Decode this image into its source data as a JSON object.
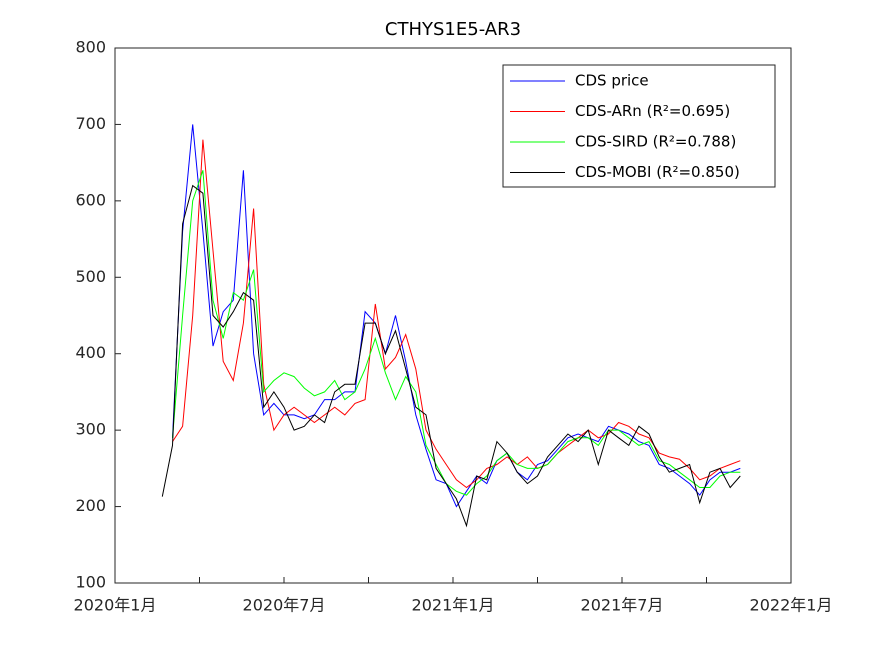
{
  "chart_data": {
    "type": "line",
    "title": "CTHYS1E5-AR3",
    "x": [
      2020.14,
      2020.17,
      2020.2,
      2020.23,
      2020.26,
      2020.29,
      2020.32,
      2020.35,
      2020.38,
      2020.41,
      2020.44,
      2020.47,
      2020.5,
      2020.53,
      2020.56,
      2020.59,
      2020.62,
      2020.65,
      2020.68,
      2020.71,
      2020.74,
      2020.77,
      2020.8,
      2020.83,
      2020.86,
      2020.89,
      2020.92,
      2020.95,
      2020.98,
      2021.01,
      2021.04,
      2021.07,
      2021.1,
      2021.13,
      2021.16,
      2021.19,
      2021.22,
      2021.25,
      2021.28,
      2021.31,
      2021.34,
      2021.37,
      2021.4,
      2021.43,
      2021.46,
      2021.49,
      2021.52,
      2021.55,
      2021.58,
      2021.61,
      2021.64,
      2021.67,
      2021.7,
      2021.73,
      2021.76,
      2021.79,
      2021.82,
      2021.85
    ],
    "series": [
      {
        "name": "CDS price",
        "color": "#0000ff",
        "values": [
          null,
          290,
          560,
          700,
          560,
          410,
          455,
          470,
          640,
          400,
          320,
          335,
          320,
          320,
          315,
          320,
          340,
          340,
          350,
          350,
          455,
          440,
          400,
          450,
          390,
          320,
          275,
          235,
          230,
          200,
          220,
          240,
          230,
          260,
          270,
          245,
          235,
          255,
          260,
          275,
          290,
          295,
          290,
          285,
          305,
          300,
          295,
          285,
          280,
          255,
          250,
          240,
          230,
          215,
          235,
          245,
          245,
          250
        ]
      },
      {
        "name": "CDS-ARn   (R²=0.695)",
        "color": "#ff0000",
        "values": [
          null,
          285,
          305,
          450,
          680,
          535,
          390,
          365,
          440,
          590,
          360,
          300,
          320,
          330,
          320,
          310,
          320,
          330,
          320,
          335,
          340,
          465,
          380,
          395,
          425,
          380,
          300,
          275,
          255,
          235,
          225,
          235,
          250,
          255,
          265,
          255,
          265,
          250,
          255,
          270,
          280,
          290,
          300,
          290,
          295,
          310,
          305,
          295,
          290,
          270,
          265,
          262,
          250,
          235,
          240,
          250,
          255,
          260
        ]
      },
      {
        "name": "CDS-SIRD (R²=0.788)",
        "color": "#00ff00",
        "values": [
          null,
          290,
          450,
          600,
          640,
          470,
          420,
          480,
          470,
          510,
          350,
          365,
          375,
          370,
          355,
          345,
          350,
          365,
          340,
          350,
          380,
          420,
          375,
          340,
          370,
          350,
          280,
          255,
          230,
          220,
          215,
          230,
          240,
          260,
          270,
          255,
          250,
          250,
          255,
          270,
          285,
          290,
          290,
          280,
          300,
          300,
          290,
          280,
          285,
          260,
          255,
          245,
          235,
          225,
          225,
          240,
          245,
          245
        ]
      },
      {
        "name": "CDS-MOBI (R²=0.850)",
        "color": "#000000",
        "values": [
          213,
          280,
          570,
          620,
          610,
          450,
          435,
          455,
          480,
          470,
          330,
          350,
          330,
          300,
          305,
          320,
          310,
          350,
          360,
          360,
          440,
          440,
          400,
          430,
          380,
          330,
          320,
          250,
          230,
          210,
          175,
          240,
          235,
          285,
          270,
          245,
          230,
          240,
          265,
          280,
          295,
          285,
          300,
          255,
          300,
          290,
          280,
          305,
          295,
          265,
          245,
          250,
          255,
          205,
          245,
          250,
          225,
          240
        ]
      }
    ],
    "xlim": [
      2020,
      2022
    ],
    "xticks": [
      {
        "value": 2020,
        "label": "2020年1月"
      },
      {
        "value": 2020.5,
        "label": "2020年7月"
      },
      {
        "value": 2021,
        "label": "2021年1月"
      },
      {
        "value": 2021.5,
        "label": "2021年7月"
      },
      {
        "value": 2022,
        "label": "2022年1月"
      }
    ],
    "xminorticks": [
      2020.25,
      2020.75,
      2021.25,
      2021.75
    ],
    "ylim": [
      100,
      800
    ],
    "yticks": [
      100,
      200,
      300,
      400,
      500,
      600,
      700,
      800
    ],
    "legend": "upper right",
    "grid": false
  }
}
